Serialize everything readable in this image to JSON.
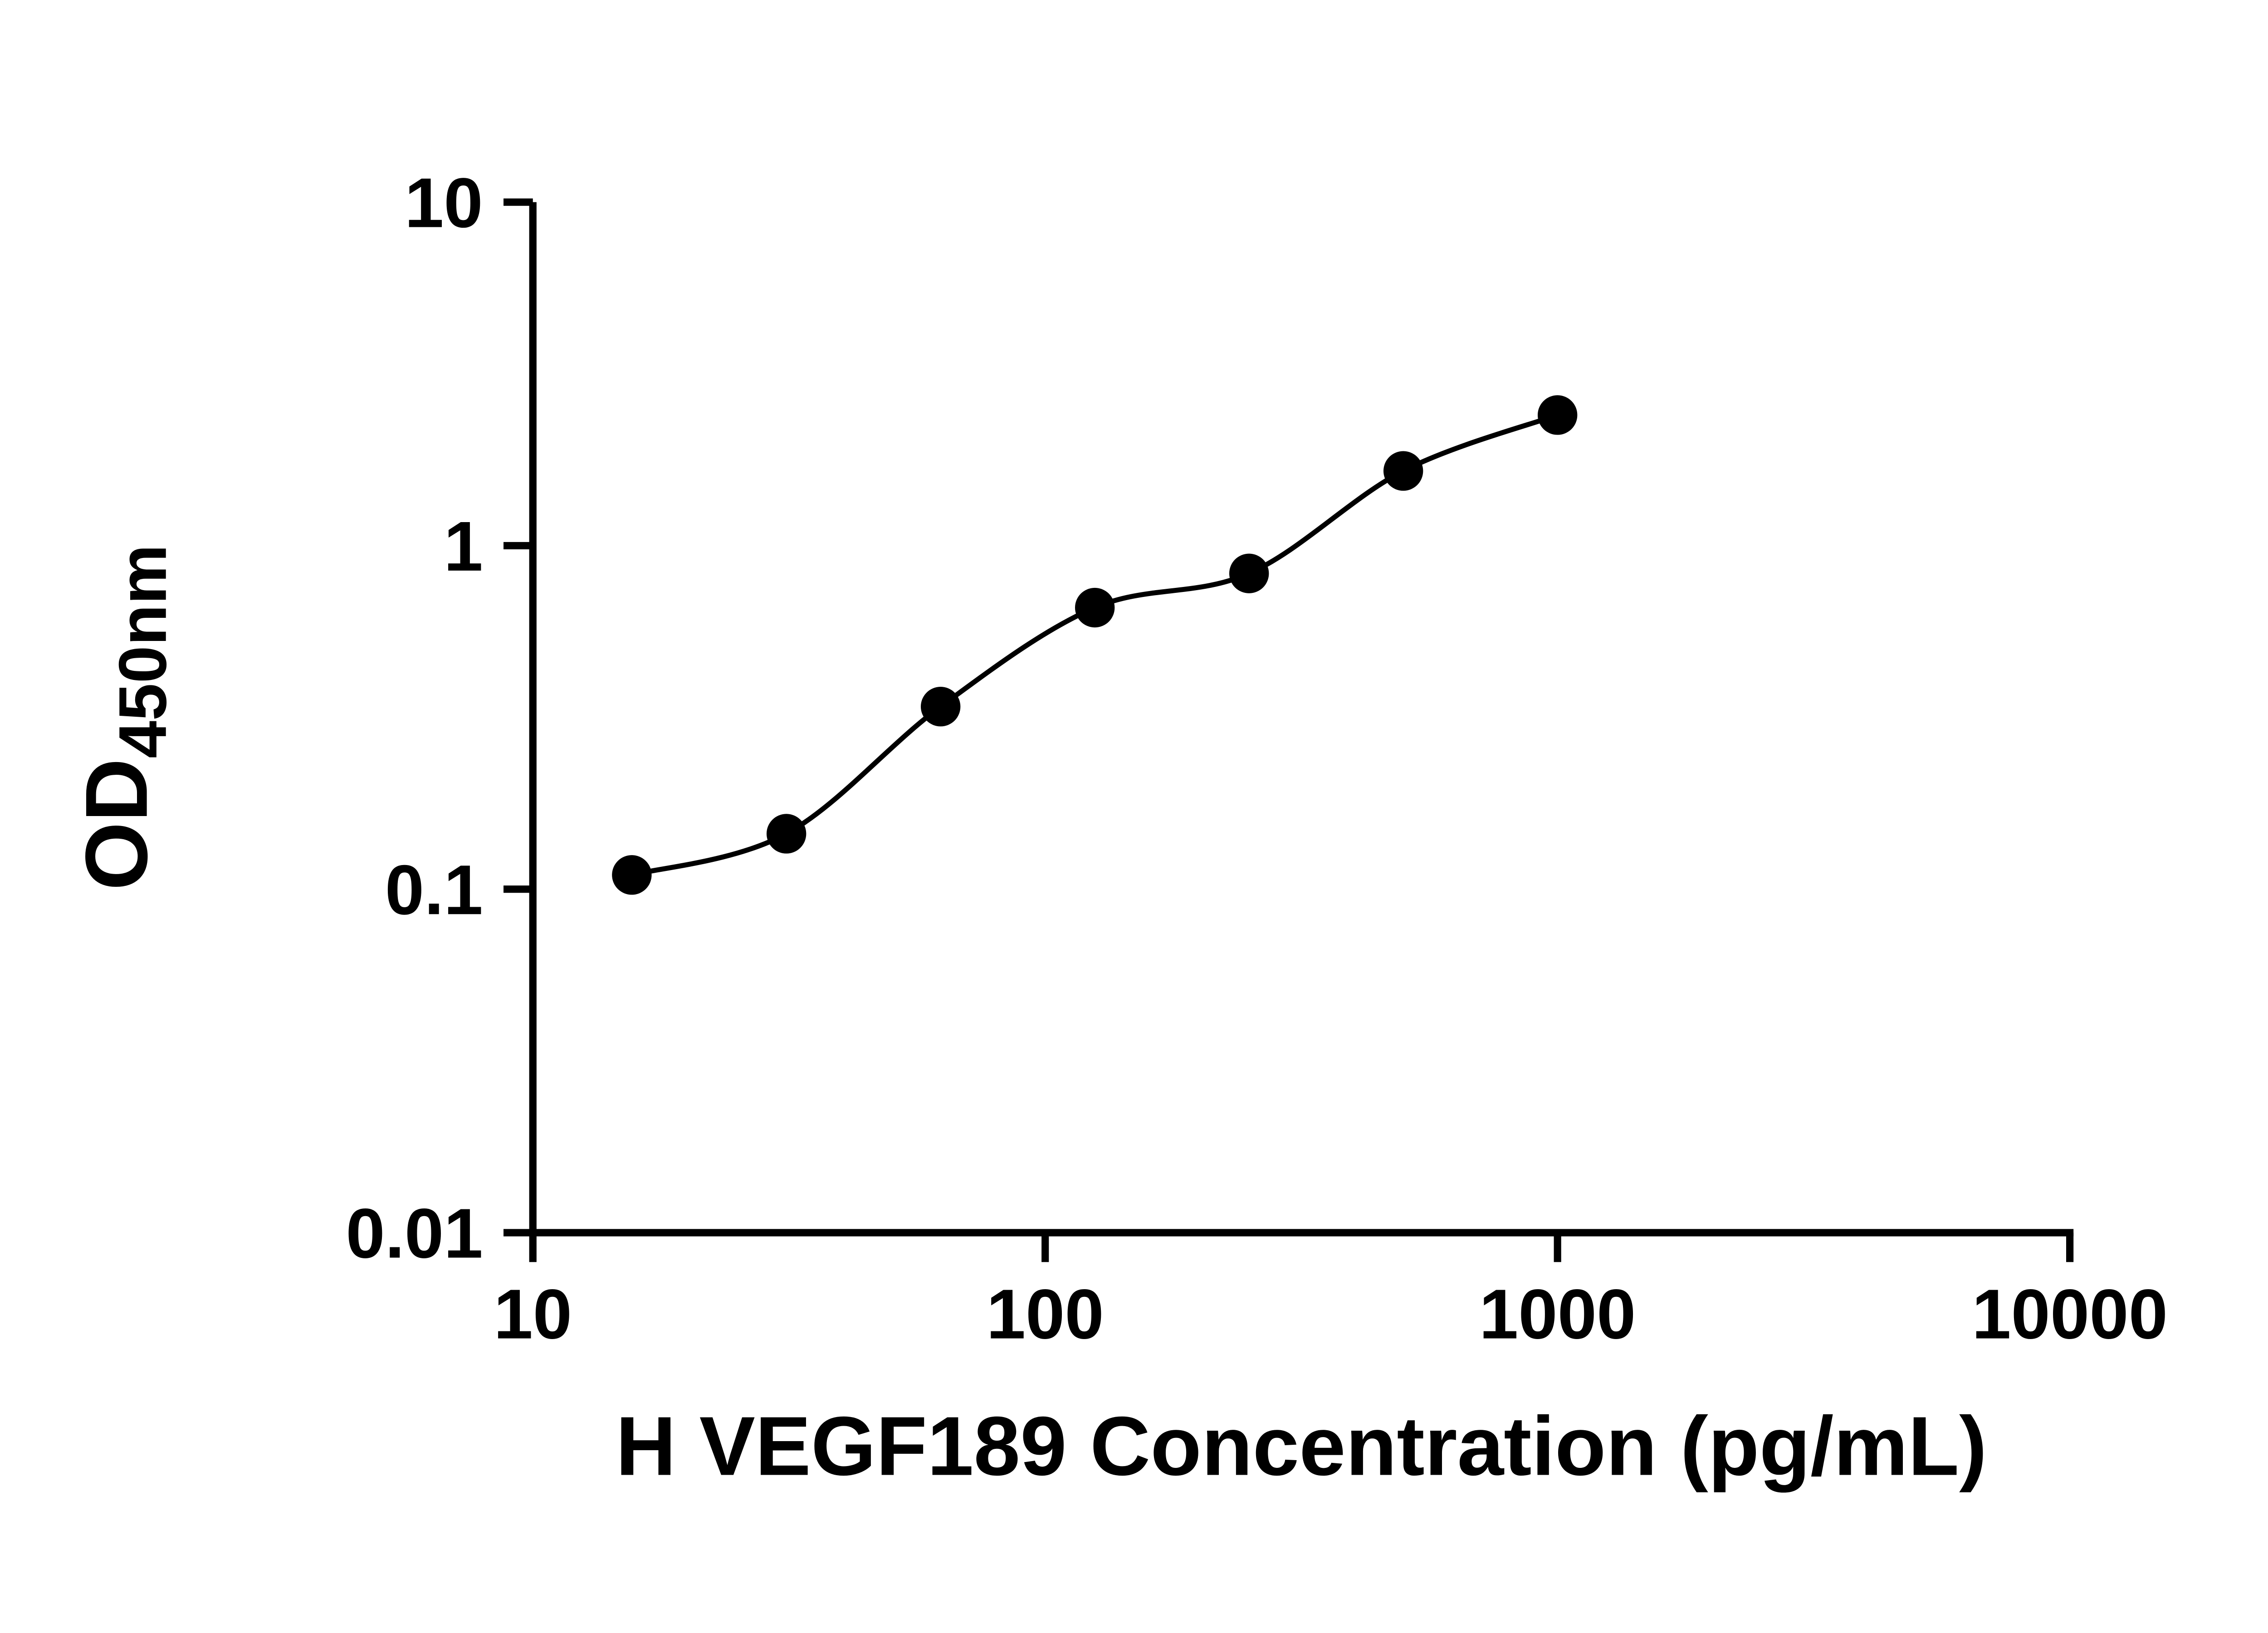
{
  "figure": {
    "background": "#ffffff",
    "axis_color": "#000000"
  },
  "chart_data": {
    "type": "scatter",
    "title": "",
    "xlabel": "H VEGF189 Concentration (pg/mL)",
    "ylabel": "OD450nm",
    "ylabel_main": "OD",
    "ylabel_sub": "450nm",
    "xscale": "log",
    "yscale": "log",
    "xlim": [
      10,
      10000
    ],
    "ylim": [
      0.01,
      10
    ],
    "xticks": [
      10,
      100,
      1000,
      10000
    ],
    "xtick_labels": [
      "10",
      "100",
      "1000",
      "10000"
    ],
    "yticks": [
      0.01,
      0.1,
      1,
      10
    ],
    "ytick_labels": [
      "0.01",
      "0.1",
      "1",
      "10"
    ],
    "grid": false,
    "legend": null,
    "x": [
      15.6,
      31.25,
      62.5,
      125,
      250,
      500,
      1000
    ],
    "y": [
      0.11,
      0.145,
      0.34,
      0.66,
      0.83,
      1.65,
      2.4
    ],
    "marker": "circle",
    "marker_color": "#000000",
    "line_color": "#000000",
    "curve": true
  }
}
